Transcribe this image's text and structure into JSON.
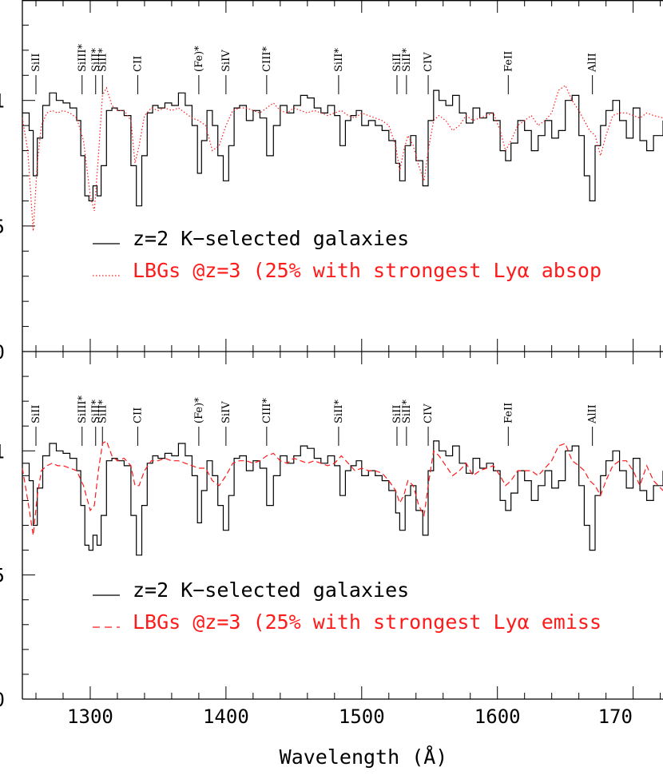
{
  "chart_data": {
    "type": "line",
    "xlabel": "Wavelength (Å)",
    "xlim": [
      1250,
      1722
    ],
    "x_ticks": [
      "1300",
      "1400",
      "1500",
      "1600",
      "170"
    ],
    "y_ticks": [
      "1",
      "5",
      "0"
    ],
    "colors": {
      "black": "#000000",
      "red": "#ff1a1a"
    },
    "line_labels": [
      {
        "text": "SiII",
        "x": 1260
      },
      {
        "text": "SiIII*",
        "x": 1294
      },
      {
        "text": "SiII*",
        "x": 1304
      },
      {
        "text": "SiII*",
        "x": 1309
      },
      {
        "text": "CII",
        "x": 1335
      },
      {
        "text": "(Fe)*",
        "x": 1380
      },
      {
        "text": "SiIV",
        "x": 1400
      },
      {
        "text": "CIII*",
        "x": 1430
      },
      {
        "text": "SiII*",
        "x": 1483
      },
      {
        "text": "SiII",
        "x": 1526
      },
      {
        "text": "SiII*",
        "x": 1533
      },
      {
        "text": "CIV",
        "x": 1549
      },
      {
        "text": "FeII",
        "x": 1608
      },
      {
        "text": "AlII",
        "x": 1670
      }
    ],
    "panels": [
      {
        "ylim": [
          0,
          1.4
        ],
        "legend": [
          {
            "label": "z=2 K−selected galaxies",
            "style": "solid",
            "color": "#000000"
          },
          {
            "label": "LBGs @z=3 (25% with strongest Lyα absop",
            "style": "dotted",
            "color": "#ff1a1a"
          }
        ],
        "series": [
          {
            "name": "z=2 K−selected galaxies",
            "style": "step",
            "x": [
              1250,
              1255,
              1258,
              1261,
              1265,
              1270,
              1275,
              1280,
              1285,
              1290,
              1293,
              1296,
              1299,
              1302,
              1305,
              1308,
              1312,
              1316,
              1320,
              1325,
              1330,
              1334,
              1338,
              1342,
              1346,
              1350,
              1355,
              1360,
              1365,
              1370,
              1375,
              1379,
              1382,
              1386,
              1390,
              1394,
              1398,
              1402,
              1406,
              1410,
              1415,
              1420,
              1425,
              1430,
              1435,
              1440,
              1445,
              1450,
              1455,
              1460,
              1465,
              1470,
              1475,
              1480,
              1484,
              1488,
              1492,
              1496,
              1500,
              1505,
              1510,
              1515,
              1520,
              1525,
              1528,
              1532,
              1536,
              1540,
              1545,
              1549,
              1553,
              1557,
              1562,
              1567,
              1572,
              1577,
              1582,
              1587,
              1592,
              1597,
              1602,
              1606,
              1610,
              1615,
              1620,
              1625,
              1630,
              1635,
              1640,
              1645,
              1650,
              1655,
              1660,
              1664,
              1668,
              1672,
              1676,
              1680,
              1685,
              1690,
              1695,
              1700,
              1705,
              1710,
              1715,
              1722
            ],
            "y": [
              0.95,
              0.88,
              0.7,
              0.85,
              0.98,
              1.03,
              1.0,
              0.99,
              0.97,
              0.92,
              0.78,
              0.62,
              0.6,
              0.66,
              0.62,
              0.74,
              0.96,
              0.97,
              0.96,
              0.94,
              0.74,
              0.58,
              0.78,
              0.95,
              0.98,
              0.97,
              0.99,
              0.98,
              1.03,
              0.98,
              0.9,
              0.71,
              0.84,
              0.96,
              0.9,
              0.78,
              0.68,
              0.82,
              0.97,
              0.98,
              0.92,
              0.96,
              0.93,
              0.78,
              0.9,
              0.98,
              0.95,
              0.98,
              1.02,
              1.01,
              0.97,
              0.95,
              0.98,
              0.94,
              0.82,
              0.92,
              0.94,
              0.96,
              0.9,
              0.92,
              0.9,
              0.88,
              0.84,
              0.75,
              0.68,
              0.82,
              0.86,
              0.76,
              0.66,
              0.92,
              1.04,
              1.0,
              0.98,
              1.02,
              0.95,
              0.91,
              0.97,
              0.93,
              0.95,
              0.92,
              0.8,
              0.76,
              0.83,
              0.92,
              0.88,
              0.8,
              0.86,
              0.92,
              0.85,
              0.88,
              1.0,
              1.02,
              0.86,
              0.7,
              0.6,
              0.82,
              0.9,
              0.96,
              1.0,
              0.92,
              0.85,
              0.97,
              0.84,
              0.8,
              0.86,
              0.92
            ]
          },
          {
            "name": "LBGs @z=3 (25% with strongest Lyα absop",
            "style": "dotted",
            "x": [
              1250,
              1254,
              1258,
              1261,
              1264,
              1268,
              1272,
              1276,
              1280,
              1285,
              1290,
              1295,
              1300,
              1303,
              1306,
              1309,
              1312,
              1316,
              1320,
              1325,
              1330,
              1333,
              1336,
              1340,
              1345,
              1350,
              1355,
              1360,
              1365,
              1370,
              1375,
              1380,
              1385,
              1390,
              1395,
              1400,
              1405,
              1410,
              1415,
              1420,
              1425,
              1430,
              1435,
              1440,
              1445,
              1450,
              1455,
              1460,
              1465,
              1470,
              1475,
              1480,
              1485,
              1490,
              1495,
              1500,
              1505,
              1510,
              1515,
              1520,
              1525,
              1528,
              1531,
              1534,
              1538,
              1542,
              1546,
              1549,
              1553,
              1557,
              1562,
              1567,
              1572,
              1577,
              1582,
              1587,
              1592,
              1597,
              1602,
              1606,
              1610,
              1615,
              1620,
              1625,
              1630,
              1635,
              1640,
              1645,
              1650,
              1655,
              1660,
              1664,
              1668,
              1672,
              1676,
              1680,
              1685,
              1690,
              1695,
              1700,
              1705,
              1710,
              1715,
              1722
            ],
            "y": [
              0.93,
              0.8,
              0.48,
              0.75,
              0.9,
              0.95,
              0.96,
              0.95,
              0.96,
              0.95,
              0.93,
              0.84,
              0.62,
              0.56,
              0.78,
              1.02,
              1.05,
              0.98,
              0.96,
              0.96,
              0.92,
              0.75,
              0.82,
              0.94,
              0.97,
              0.96,
              0.97,
              0.96,
              0.97,
              0.95,
              0.93,
              0.92,
              0.9,
              0.8,
              0.82,
              0.9,
              0.96,
              0.97,
              0.97,
              0.96,
              0.95,
              0.97,
              0.99,
              0.96,
              0.95,
              0.97,
              0.96,
              0.95,
              0.96,
              0.95,
              0.94,
              0.95,
              0.96,
              0.94,
              0.93,
              0.95,
              0.94,
              0.93,
              0.92,
              0.9,
              0.82,
              0.72,
              0.8,
              0.86,
              0.82,
              0.74,
              0.68,
              0.8,
              0.92,
              0.94,
              0.92,
              0.88,
              0.9,
              0.94,
              0.92,
              0.93,
              0.94,
              0.95,
              0.88,
              0.8,
              0.84,
              0.9,
              0.92,
              0.94,
              0.9,
              0.92,
              0.95,
              1.04,
              1.06,
              1.0,
              0.96,
              0.92,
              0.88,
              0.86,
              0.78,
              0.86,
              0.94,
              0.95,
              0.95,
              0.94,
              0.93,
              0.95,
              0.94,
              0.93
            ]
          }
        ]
      },
      {
        "ylim": [
          0,
          1.4
        ],
        "legend": [
          {
            "label": "z=2 K−selected galaxies",
            "style": "solid",
            "color": "#000000"
          },
          {
            "label": "LBGs @z=3 (25% with strongest Lyα emiss",
            "style": "dashed",
            "color": "#ff1a1a"
          }
        ],
        "series": [
          {
            "name": "z=2 K−selected galaxies",
            "style": "step",
            "x": [
              1250,
              1255,
              1258,
              1261,
              1265,
              1270,
              1275,
              1280,
              1285,
              1290,
              1293,
              1296,
              1299,
              1302,
              1305,
              1308,
              1312,
              1316,
              1320,
              1325,
              1330,
              1334,
              1338,
              1342,
              1346,
              1350,
              1355,
              1360,
              1365,
              1370,
              1375,
              1379,
              1382,
              1386,
              1390,
              1394,
              1398,
              1402,
              1406,
              1410,
              1415,
              1420,
              1425,
              1430,
              1435,
              1440,
              1445,
              1450,
              1455,
              1460,
              1465,
              1470,
              1475,
              1480,
              1484,
              1488,
              1492,
              1496,
              1500,
              1505,
              1510,
              1515,
              1520,
              1525,
              1528,
              1532,
              1536,
              1540,
              1545,
              1549,
              1553,
              1557,
              1562,
              1567,
              1572,
              1577,
              1582,
              1587,
              1592,
              1597,
              1602,
              1606,
              1610,
              1615,
              1620,
              1625,
              1630,
              1635,
              1640,
              1645,
              1650,
              1655,
              1660,
              1664,
              1668,
              1672,
              1676,
              1680,
              1685,
              1690,
              1695,
              1700,
              1705,
              1710,
              1715,
              1722
            ],
            "y": [
              0.95,
              0.88,
              0.7,
              0.85,
              0.98,
              1.03,
              1.0,
              0.99,
              0.97,
              0.92,
              0.78,
              0.62,
              0.6,
              0.66,
              0.62,
              0.74,
              0.96,
              0.97,
              0.96,
              0.94,
              0.74,
              0.58,
              0.78,
              0.95,
              0.98,
              0.97,
              0.99,
              0.98,
              1.03,
              0.98,
              0.9,
              0.71,
              0.84,
              0.96,
              0.9,
              0.78,
              0.68,
              0.82,
              0.97,
              0.98,
              0.92,
              0.96,
              0.93,
              0.78,
              0.9,
              0.98,
              0.95,
              0.98,
              1.02,
              1.01,
              0.97,
              0.95,
              0.98,
              0.94,
              0.82,
              0.92,
              0.94,
              0.96,
              0.9,
              0.92,
              0.9,
              0.88,
              0.84,
              0.75,
              0.68,
              0.82,
              0.86,
              0.76,
              0.66,
              0.92,
              1.04,
              1.0,
              0.98,
              1.02,
              0.95,
              0.91,
              0.97,
              0.93,
              0.95,
              0.92,
              0.8,
              0.76,
              0.83,
              0.92,
              0.88,
              0.8,
              0.86,
              0.92,
              0.85,
              0.88,
              1.0,
              1.02,
              0.86,
              0.7,
              0.6,
              0.82,
              0.9,
              0.96,
              1.0,
              0.92,
              0.85,
              0.97,
              0.84,
              0.8,
              0.86,
              0.92
            ]
          },
          {
            "name": "LBGs @z=3 (25% with strongest Lyα emiss",
            "style": "dashed",
            "x": [
              1250,
              1254,
              1258,
              1261,
              1264,
              1268,
              1272,
              1276,
              1280,
              1285,
              1290,
              1295,
              1300,
              1303,
              1306,
              1309,
              1312,
              1316,
              1320,
              1325,
              1330,
              1333,
              1336,
              1340,
              1345,
              1350,
              1355,
              1360,
              1365,
              1370,
              1375,
              1380,
              1385,
              1390,
              1395,
              1400,
              1405,
              1410,
              1415,
              1420,
              1425,
              1430,
              1435,
              1440,
              1445,
              1450,
              1455,
              1460,
              1465,
              1470,
              1475,
              1480,
              1485,
              1490,
              1495,
              1500,
              1505,
              1510,
              1515,
              1520,
              1525,
              1528,
              1531,
              1534,
              1538,
              1542,
              1546,
              1549,
              1553,
              1557,
              1562,
              1567,
              1572,
              1577,
              1582,
              1587,
              1592,
              1597,
              1602,
              1606,
              1610,
              1615,
              1620,
              1625,
              1630,
              1635,
              1640,
              1645,
              1650,
              1655,
              1660,
              1664,
              1668,
              1672,
              1676,
              1680,
              1685,
              1690,
              1695,
              1700,
              1705,
              1710,
              1715,
              1722
            ],
            "y": [
              0.93,
              0.8,
              0.66,
              0.82,
              0.92,
              0.94,
              0.95,
              0.94,
              0.94,
              0.93,
              0.92,
              0.86,
              0.76,
              0.78,
              0.92,
              1.03,
              1.04,
              0.98,
              0.96,
              0.97,
              0.94,
              0.86,
              0.86,
              0.92,
              0.96,
              0.96,
              0.97,
              0.96,
              0.96,
              0.95,
              0.94,
              0.93,
              0.93,
              0.88,
              0.86,
              0.9,
              0.95,
              0.96,
              0.96,
              0.95,
              0.96,
              0.98,
              0.99,
              0.96,
              0.95,
              0.97,
              0.96,
              0.95,
              0.96,
              0.95,
              0.94,
              0.95,
              0.98,
              0.95,
              0.92,
              0.93,
              0.92,
              0.92,
              0.91,
              0.88,
              0.84,
              0.79,
              0.82,
              0.88,
              0.86,
              0.78,
              0.74,
              0.86,
              1.0,
              0.98,
              0.94,
              0.9,
              0.92,
              0.95,
              0.9,
              0.92,
              0.93,
              0.94,
              0.9,
              0.86,
              0.88,
              0.92,
              0.92,
              0.92,
              0.9,
              0.93,
              0.96,
              1.02,
              1.03,
              0.96,
              0.94,
              0.92,
              0.88,
              0.86,
              0.82,
              0.88,
              0.94,
              0.96,
              0.96,
              0.92,
              0.86,
              0.94,
              0.88,
              0.84
            ]
          }
        ]
      }
    ]
  }
}
